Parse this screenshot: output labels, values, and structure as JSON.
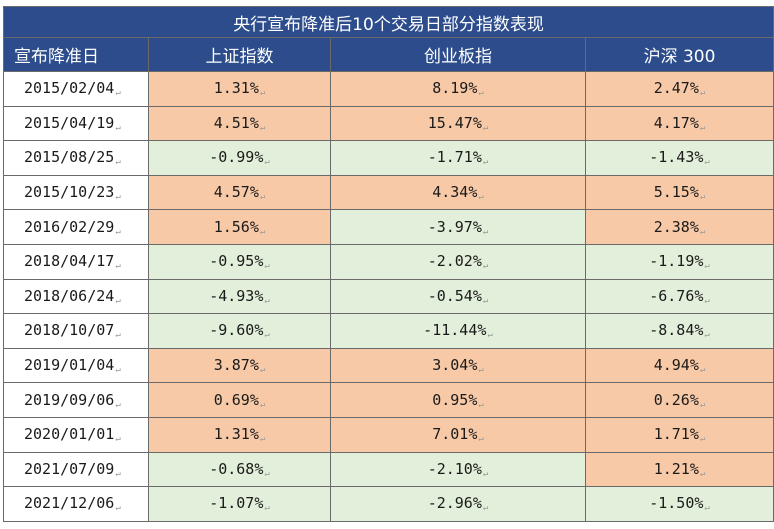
{
  "table": {
    "title": "央行宣布降准后10个交易日部分指数表现",
    "headers": [
      "宣布降准日",
      "上证指数",
      "创业板指",
      "沪深 300"
    ],
    "rows": [
      {
        "date": "2015/02/04",
        "sh": "1.31%",
        "cyb": "8.19%",
        "hs300": "2.47%"
      },
      {
        "date": "2015/04/19",
        "sh": "4.51%",
        "cyb": "15.47%",
        "hs300": "4.17%"
      },
      {
        "date": "2015/08/25",
        "sh": "-0.99%",
        "cyb": "-1.71%",
        "hs300": "-1.43%"
      },
      {
        "date": "2015/10/23",
        "sh": "4.57%",
        "cyb": "4.34%",
        "hs300": "5.15%"
      },
      {
        "date": "2016/02/29",
        "sh": "1.56%",
        "cyb": "-3.97%",
        "hs300": "2.38%"
      },
      {
        "date": "2018/04/17",
        "sh": "-0.95%",
        "cyb": "-2.02%",
        "hs300": "-1.19%"
      },
      {
        "date": "2018/06/24",
        "sh": "-4.93%",
        "cyb": "-0.54%",
        "hs300": "-6.76%"
      },
      {
        "date": "2018/10/07",
        "sh": "-9.60%",
        "cyb": "-11.44%",
        "hs300": "-8.84%"
      },
      {
        "date": "2019/01/04",
        "sh": "3.87%",
        "cyb": "3.04%",
        "hs300": "4.94%"
      },
      {
        "date": "2019/09/06",
        "sh": "0.69%",
        "cyb": "0.95%",
        "hs300": "0.26%"
      },
      {
        "date": "2020/01/01",
        "sh": "1.31%",
        "cyb": "7.01%",
        "hs300": "1.71%"
      },
      {
        "date": "2021/07/09",
        "sh": "-0.68%",
        "cyb": "-2.10%",
        "hs300": "1.21%"
      },
      {
        "date": "2021/12/06",
        "sh": "-1.07%",
        "cyb": "-2.96%",
        "hs300": "-1.50%"
      }
    ]
  },
  "colors": {
    "header_bg": "#2c4c8c",
    "positive_bg": "#f8c9a6",
    "negative_bg": "#e2efda"
  }
}
